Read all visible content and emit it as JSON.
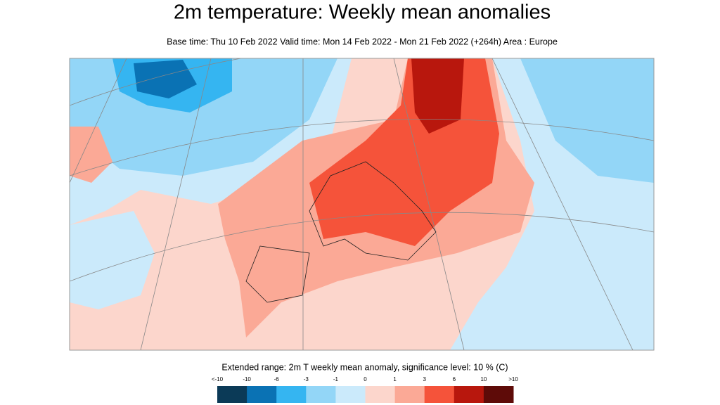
{
  "header": {
    "title": "2m temperature: Weekly mean anomalies",
    "subtitle": "Base time: Thu 10 Feb 2022 Valid time: Mon 14 Feb 2022 - Mon 21 Feb 2022 (+264h) Area : Europe"
  },
  "legend": {
    "title": "Extended range: 2m T weekly mean anomaly, significance level: 10 % (C)",
    "labels": [
      "<-10",
      "-10",
      "-6",
      "-3",
      "-1",
      "0",
      "1",
      "3",
      "6",
      "10",
      ">10"
    ],
    "colors": [
      "#0b3a57",
      "#0a72b4",
      "#35b5f1",
      "#93d6f7",
      "#cbeafb",
      "#fcd6cc",
      "#fba996",
      "#f5533a",
      "#b8170d",
      "#5e0b08"
    ]
  }
}
